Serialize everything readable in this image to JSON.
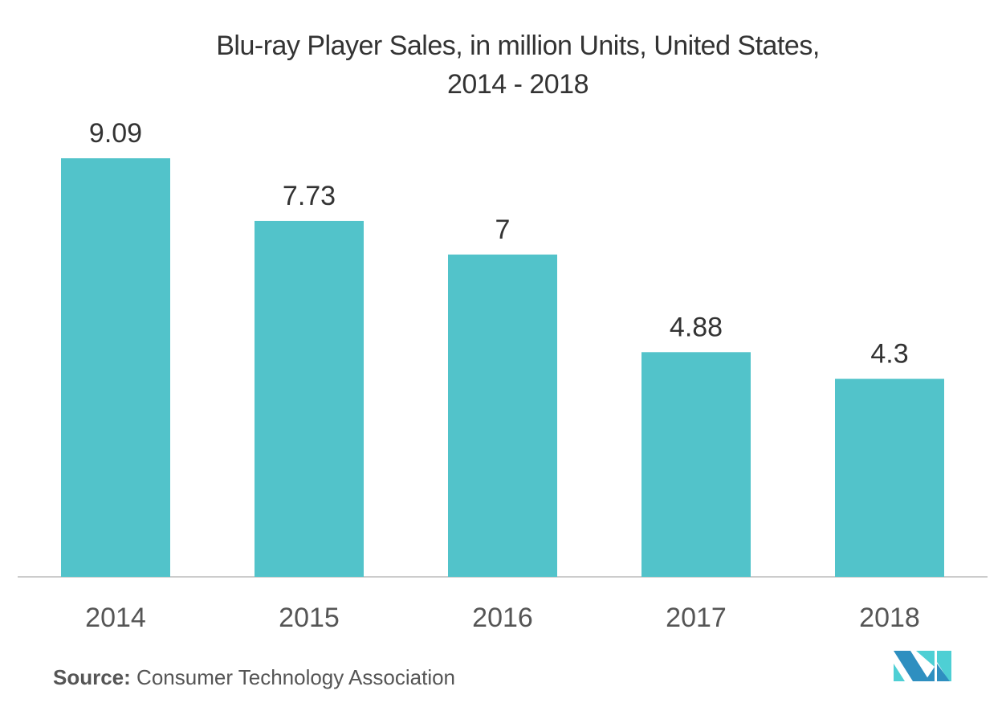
{
  "chart_data": {
    "type": "bar",
    "title": "Blu-ray Player Sales, in million Units, United States,",
    "subtitle": "2014 - 2018",
    "categories": [
      "2014",
      "2015",
      "2016",
      "2017",
      "2018"
    ],
    "values": [
      9.09,
      7.73,
      7,
      4.88,
      4.3
    ],
    "value_labels": [
      "9.09",
      "7.73",
      "7",
      "4.88",
      "4.3"
    ],
    "xlabel": "",
    "ylabel": "",
    "ylim": [
      0,
      9.09
    ],
    "grid": false,
    "bar_color": "#52c3ca"
  },
  "source": {
    "label": "Source:",
    "text": "Consumer Technology Association"
  }
}
